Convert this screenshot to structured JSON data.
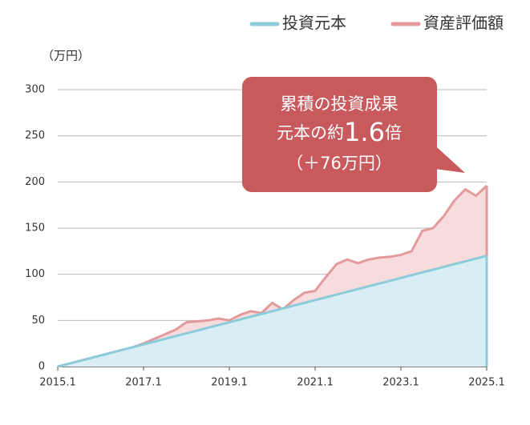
{
  "chart_data": {
    "type": "area",
    "y_unit_label": "（万円）",
    "x": [
      2015,
      2015.25,
      2015.5,
      2015.75,
      2016,
      2016.25,
      2016.5,
      2016.75,
      2017,
      2017.25,
      2017.5,
      2017.75,
      2018,
      2018.25,
      2018.5,
      2018.75,
      2019,
      2019.25,
      2019.5,
      2019.75,
      2020,
      2020.25,
      2020.5,
      2020.75,
      2021,
      2021.25,
      2021.5,
      2021.75,
      2022,
      2022.25,
      2022.5,
      2022.75,
      2023,
      2023.25,
      2023.5,
      2023.75,
      2024,
      2024.25,
      2024.5,
      2024.75,
      2025
    ],
    "series": [
      {
        "name": "投資元本",
        "color": "#8ccbd9",
        "fill": "#d8eef4",
        "values": [
          0,
          3,
          6,
          9,
          12,
          15,
          18,
          21,
          24,
          27,
          30,
          33,
          36,
          39,
          42,
          45,
          48,
          51,
          54,
          57,
          60,
          63,
          66,
          69,
          72,
          75,
          78,
          81,
          84,
          87,
          90,
          93,
          96,
          99,
          102,
          105,
          108,
          111,
          114,
          117,
          120
        ]
      },
      {
        "name": "資産評価額",
        "color": "#e29a9c",
        "fill": "#f6dcdd",
        "values": [
          0,
          3,
          6,
          9,
          12,
          15,
          18,
          21,
          25,
          30,
          35,
          40,
          48,
          49,
          50,
          52,
          50,
          56,
          60,
          58,
          69,
          62,
          72,
          80,
          82,
          97,
          111,
          116,
          112,
          116,
          118,
          119,
          121,
          125,
          147,
          150,
          163,
          180,
          192,
          185,
          196
        ]
      }
    ],
    "xlim": [
      2015,
      2025
    ],
    "xticks": [
      {
        "value": 2015,
        "label": "2015.1"
      },
      {
        "value": 2017,
        "label": "2017.1"
      },
      {
        "value": 2019,
        "label": "2019.1"
      },
      {
        "value": 2021,
        "label": "2021.1"
      },
      {
        "value": 2023,
        "label": "2023.1"
      },
      {
        "value": 2025,
        "label": "2025.1"
      }
    ],
    "ylim": [
      0,
      300
    ],
    "yticks": [
      0,
      50,
      100,
      150,
      200,
      250,
      300
    ],
    "grid": true,
    "legend": "top-right",
    "annotation": {
      "line1": "累積の投資成果",
      "line2_pre": "元本の約",
      "line2_num": "1.6",
      "line2_post": "倍",
      "line3": "（＋76万円）",
      "color": "#c85a5e"
    }
  }
}
